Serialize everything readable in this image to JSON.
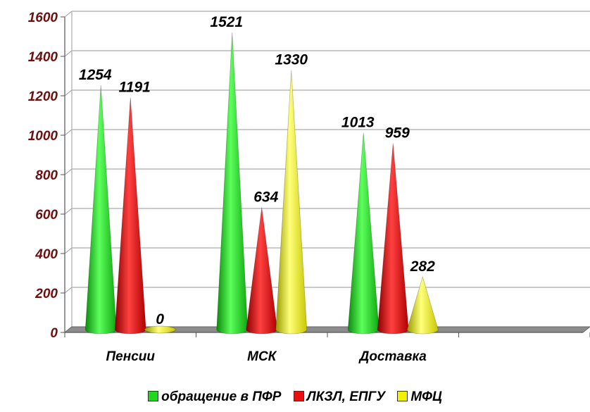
{
  "chart_data": {
    "type": "bar",
    "style": "3d-cone",
    "title": "",
    "xlabel": "",
    "ylabel": "",
    "ylim": [
      0,
      1600
    ],
    "yticks": [
      0,
      200,
      400,
      600,
      800,
      1000,
      1200,
      1400,
      1600
    ],
    "grid": true,
    "legend_position": "bottom",
    "categories": [
      "Пенсии",
      "МСК",
      "Доставка"
    ],
    "series": [
      {
        "name": "обращение в ПФР",
        "color": "#1fd81f",
        "values": [
          1254,
          1521,
          1013
        ]
      },
      {
        "name": "ЛКЗЛ, ЕПГУ",
        "color": "#e81010",
        "values": [
          1191,
          634,
          959
        ]
      },
      {
        "name": "МФЦ",
        "color": "#f0f000",
        "values": [
          0,
          1330,
          282
        ]
      }
    ]
  }
}
